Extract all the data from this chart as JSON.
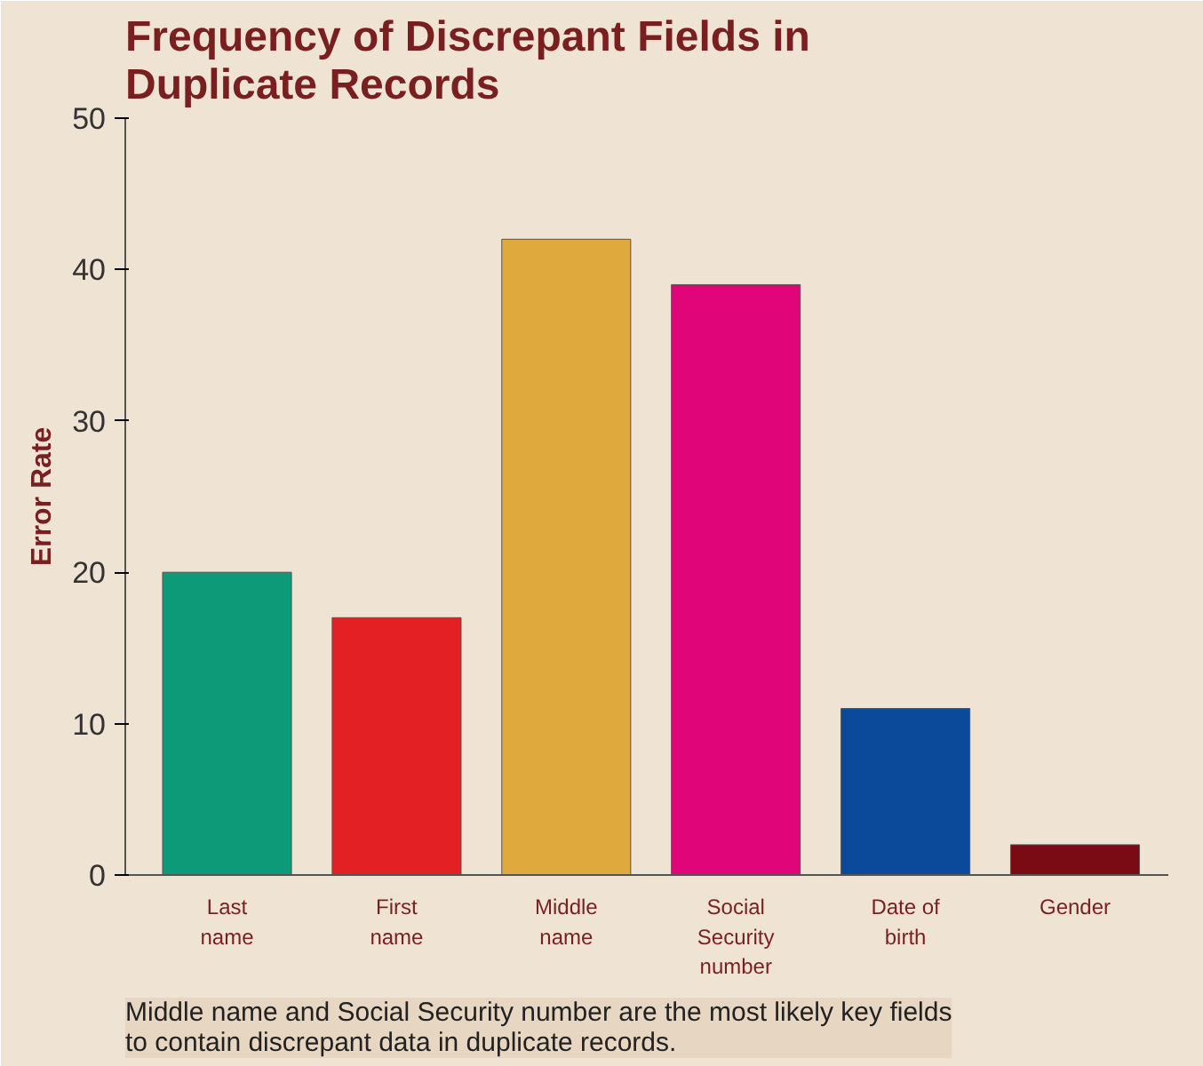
{
  "chart_data": {
    "type": "bar",
    "title": "Frequency of Discrepant Fields in Duplicate Records",
    "ylabel": "Error Rate",
    "categories": [
      "Last name",
      "First name",
      "Middle name",
      "Social Security number",
      "Date of birth",
      "Gender"
    ],
    "values": [
      20,
      17,
      42,
      39,
      11,
      2
    ],
    "colors": [
      "#0d9a78",
      "#e32024",
      "#e0a93e",
      "#e0067a",
      "#0b4a9a",
      "#7a0a14"
    ],
    "ylim": [
      0,
      50
    ],
    "yticks": [
      0,
      10,
      20,
      30,
      40,
      50
    ],
    "grid": false,
    "annotations": [
      "Middle name and Social Security number are the most likely key fields to contain discrepant data in duplicate records."
    ]
  }
}
